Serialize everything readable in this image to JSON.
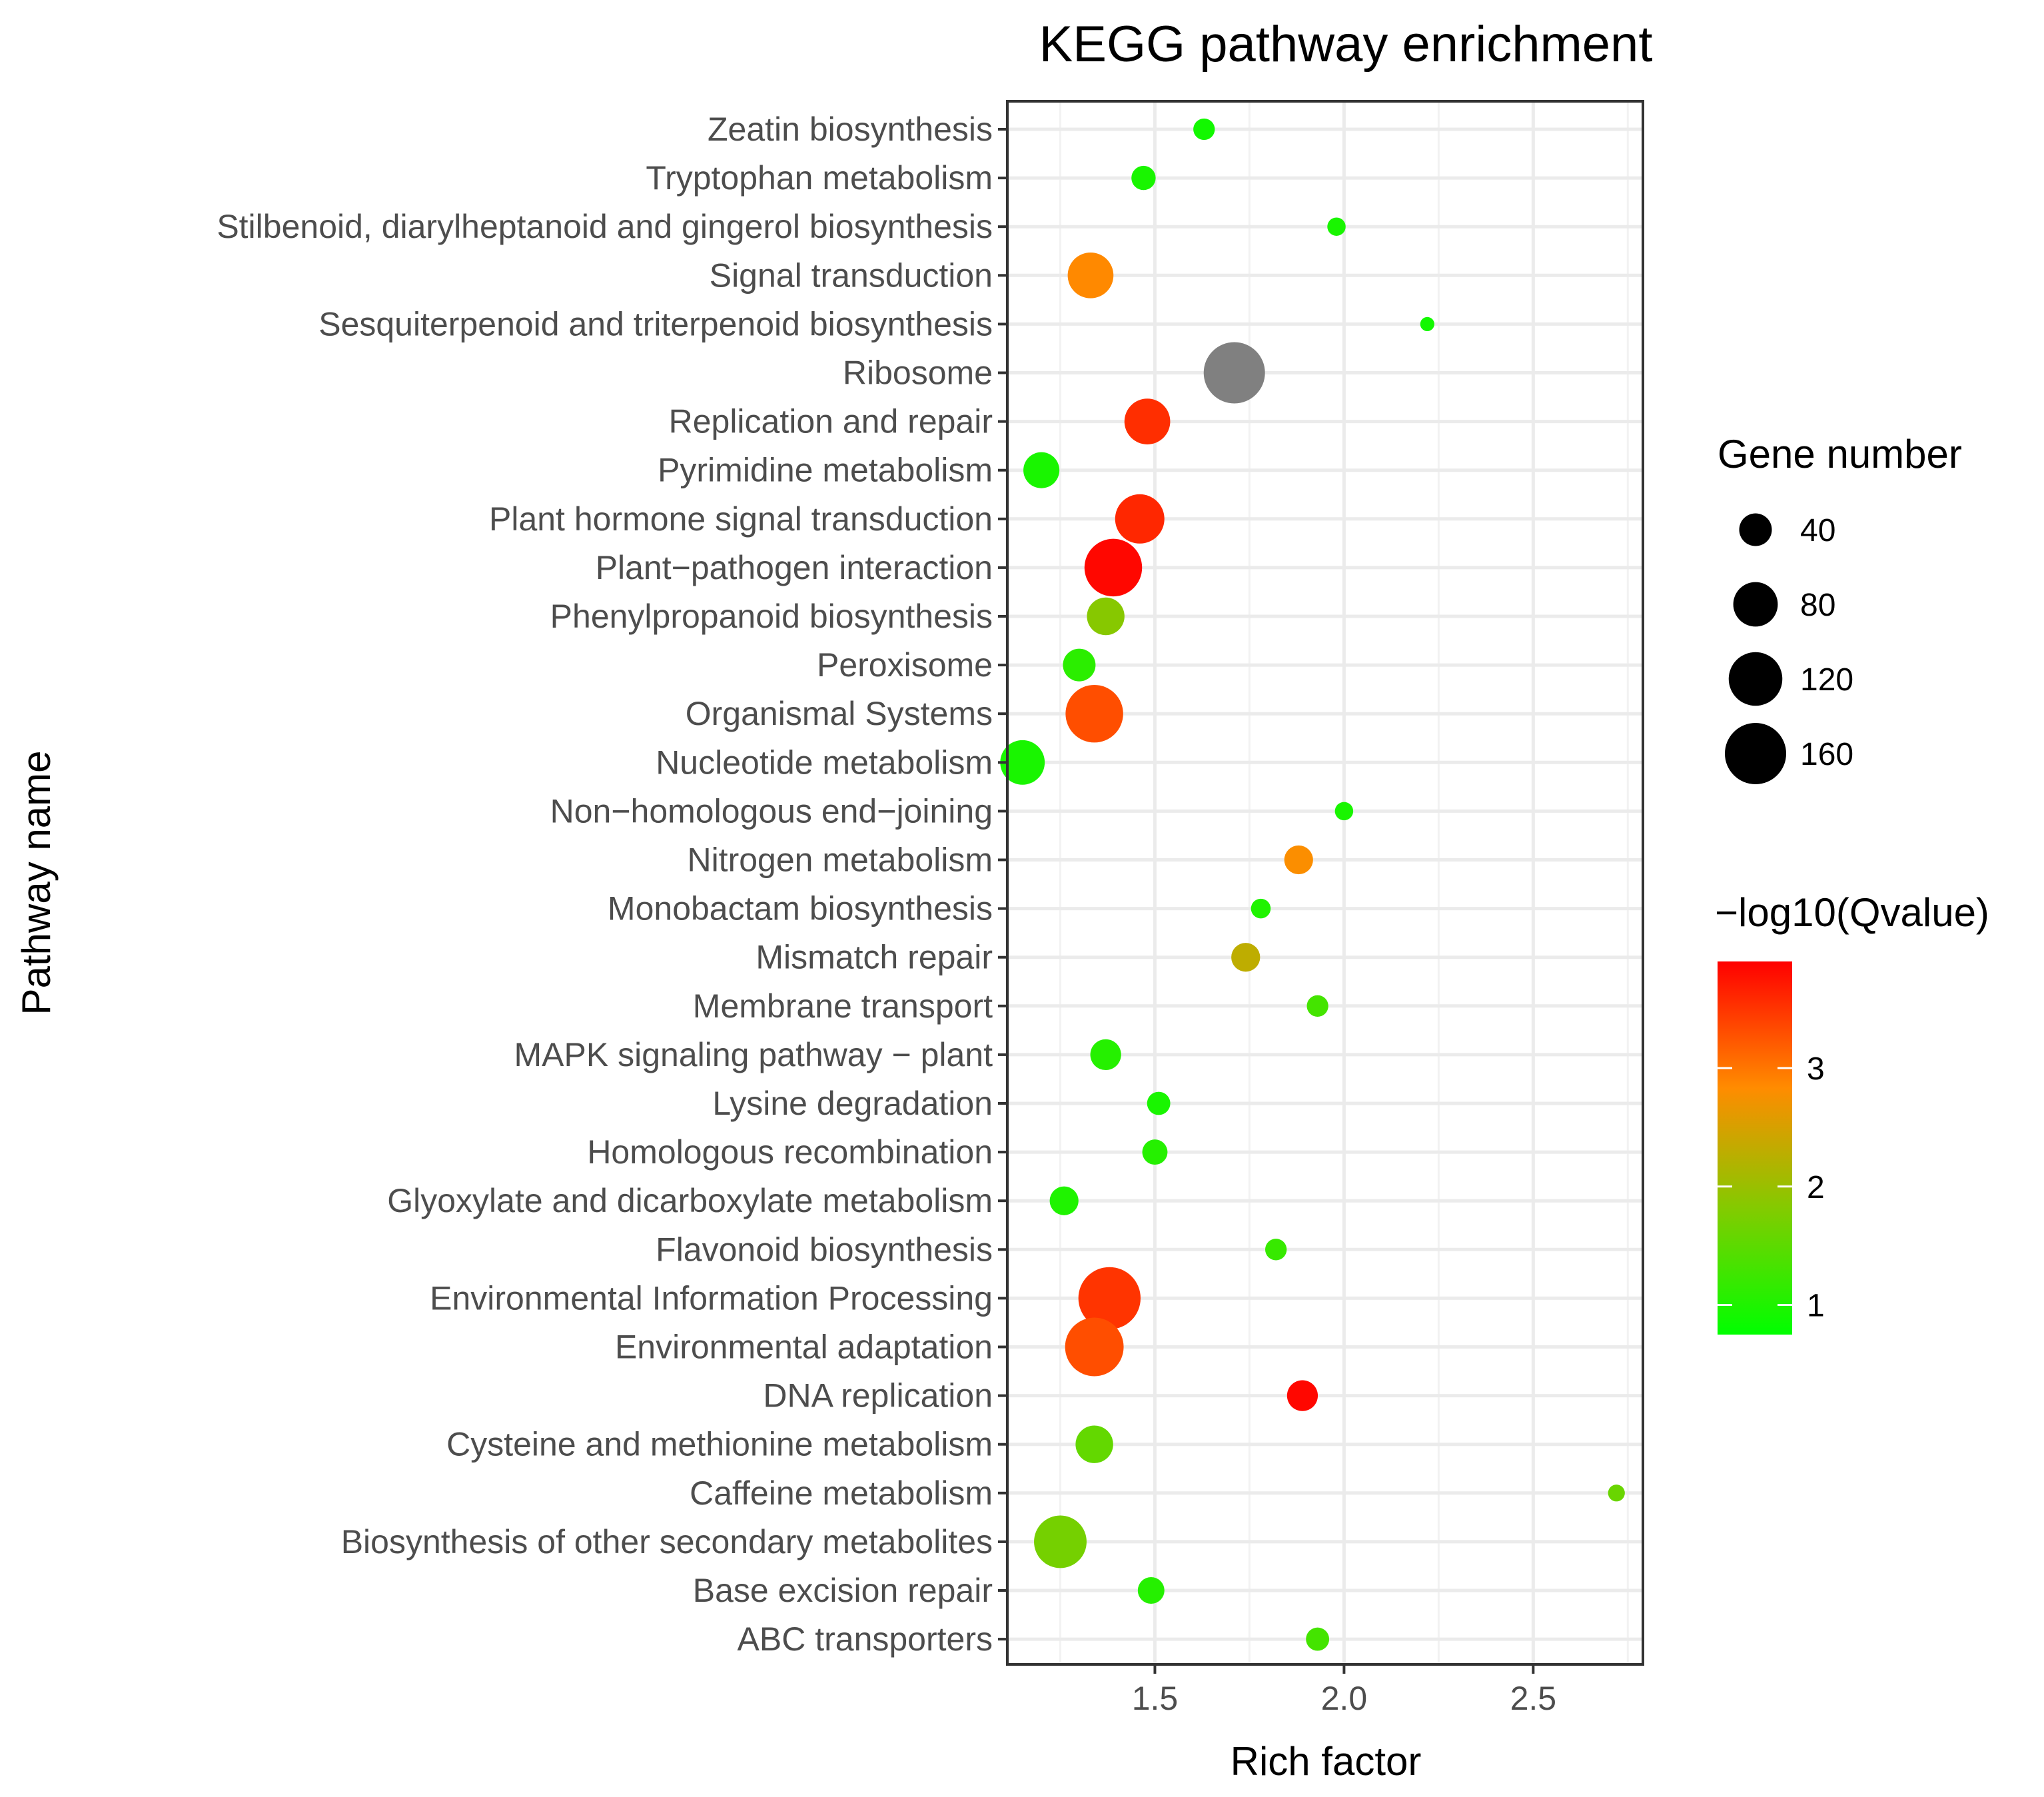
{
  "chart_data": {
    "type": "scatter",
    "title": "KEGG pathway enrichment",
    "xlabel": "Rich factor",
    "ylabel": "Pathway name",
    "xlim": [
      1.11,
      2.79
    ],
    "xticks": [
      1.5,
      2.0,
      2.5
    ],
    "xtick_labels": [
      "1.5",
      "2.0",
      "2.5"
    ],
    "grid": true,
    "size_legend": {
      "title": "Gene number",
      "values": [
        40,
        80,
        120,
        160
      ],
      "labels": [
        "40",
        "80",
        "120",
        "160"
      ]
    },
    "color_legend": {
      "title": "−log10(Qvalue)",
      "min": 0.75,
      "max": 3.9,
      "ticks": [
        1,
        2,
        3
      ],
      "tick_labels": [
        "1",
        "2",
        "3"
      ],
      "low_color": "#00ff00",
      "high_color": "#ff0000"
    },
    "na_color": "#808080",
    "points": [
      {
        "pathway": "Zeatin biosynthesis",
        "rich_factor": 1.63,
        "gene_number": 15,
        "qvalue_log": 0.9
      },
      {
        "pathway": "Tryptophan metabolism",
        "rich_factor": 1.47,
        "gene_number": 20,
        "qvalue_log": 0.95
      },
      {
        "pathway": "Stilbenoid, diarylheptanoid and gingerol biosynthesis",
        "rich_factor": 1.98,
        "gene_number": 10,
        "qvalue_log": 0.95
      },
      {
        "pathway": "Signal transduction",
        "rich_factor": 1.33,
        "gene_number": 85,
        "qvalue_log": 2.85
      },
      {
        "pathway": "Sesquiterpenoid and triterpenoid biosynthesis",
        "rich_factor": 2.22,
        "gene_number": 5,
        "qvalue_log": 0.9
      },
      {
        "pathway": "Ribosome",
        "rich_factor": 1.71,
        "gene_number": 160,
        "qvalue_log": null
      },
      {
        "pathway": "Replication and repair",
        "rich_factor": 1.48,
        "gene_number": 85,
        "qvalue_log": 3.55
      },
      {
        "pathway": "Pyrimidine metabolism",
        "rich_factor": 1.2,
        "gene_number": 50,
        "qvalue_log": 0.95
      },
      {
        "pathway": "Plant hormone signal transduction",
        "rich_factor": 1.46,
        "gene_number": 100,
        "qvalue_log": 3.6
      },
      {
        "pathway": "Plant−pathogen interaction",
        "rich_factor": 1.39,
        "gene_number": 140,
        "qvalue_log": 3.85
      },
      {
        "pathway": "Phenylpropanoid biosynthesis",
        "rich_factor": 1.37,
        "gene_number": 55,
        "qvalue_log": 1.85
      },
      {
        "pathway": "Peroxisome",
        "rich_factor": 1.3,
        "gene_number": 40,
        "qvalue_log": 1.1
      },
      {
        "pathway": "Organismal Systems",
        "rich_factor": 1.34,
        "gene_number": 140,
        "qvalue_log": 3.3
      },
      {
        "pathway": "Nucleotide metabolism",
        "rich_factor": 1.15,
        "gene_number": 80,
        "qvalue_log": 0.95
      },
      {
        "pathway": "Non−homologous end−joining",
        "rich_factor": 2.0,
        "gene_number": 10,
        "qvalue_log": 0.95
      },
      {
        "pathway": "Nitrogen metabolism",
        "rich_factor": 1.88,
        "gene_number": 30,
        "qvalue_log": 2.8
      },
      {
        "pathway": "Monobactam biosynthesis",
        "rich_factor": 1.78,
        "gene_number": 12,
        "qvalue_log": 1.0
      },
      {
        "pathway": "Mismatch repair",
        "rich_factor": 1.74,
        "gene_number": 30,
        "qvalue_log": 2.3
      },
      {
        "pathway": "Membrane transport",
        "rich_factor": 1.93,
        "gene_number": 15,
        "qvalue_log": 1.3
      },
      {
        "pathway": "MAPK signaling pathway − plant",
        "rich_factor": 1.37,
        "gene_number": 35,
        "qvalue_log": 1.05
      },
      {
        "pathway": "Lysine degradation",
        "rich_factor": 1.51,
        "gene_number": 18,
        "qvalue_log": 0.95
      },
      {
        "pathway": "Homologous recombination",
        "rich_factor": 1.5,
        "gene_number": 22,
        "qvalue_log": 1.05
      },
      {
        "pathway": "Glyoxylate and dicarboxylate metabolism",
        "rich_factor": 1.26,
        "gene_number": 30,
        "qvalue_log": 1.0
      },
      {
        "pathway": "Flavonoid biosynthesis",
        "rich_factor": 1.82,
        "gene_number": 15,
        "qvalue_log": 1.2
      },
      {
        "pathway": "Environmental Information Processing",
        "rich_factor": 1.38,
        "gene_number": 165,
        "qvalue_log": 3.5
      },
      {
        "pathway": "Environmental adaptation",
        "rich_factor": 1.34,
        "gene_number": 145,
        "qvalue_log": 3.3
      },
      {
        "pathway": "DNA replication",
        "rich_factor": 1.89,
        "gene_number": 35,
        "qvalue_log": 3.85
      },
      {
        "pathway": "Cysteine and methionine metabolism",
        "rich_factor": 1.34,
        "gene_number": 55,
        "qvalue_log": 1.55
      },
      {
        "pathway": "Caffeine metabolism",
        "rich_factor": 2.72,
        "gene_number": 8,
        "qvalue_log": 1.6
      },
      {
        "pathway": "Biosynthesis of other secondary metabolites",
        "rich_factor": 1.25,
        "gene_number": 115,
        "qvalue_log": 1.7
      },
      {
        "pathway": "Base excision repair",
        "rich_factor": 1.49,
        "gene_number": 25,
        "qvalue_log": 1.05
      },
      {
        "pathway": "ABC transporters",
        "rich_factor": 1.93,
        "gene_number": 18,
        "qvalue_log": 1.3
      }
    ]
  }
}
